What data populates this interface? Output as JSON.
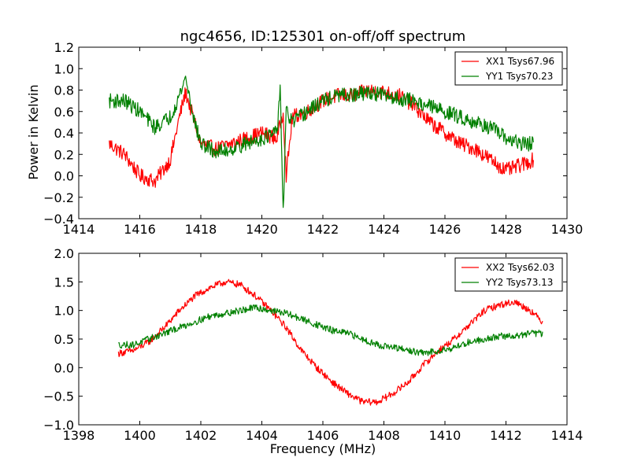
{
  "chart_data": [
    {
      "type": "line",
      "title": "ngc4656, ID:125301 on-off/off spectrum",
      "xlabel": "",
      "ylabel": "Power in Kelvin",
      "xlim": [
        1414,
        1430
      ],
      "ylim": [
        -0.4,
        1.2
      ],
      "xticks": [
        1414,
        1416,
        1418,
        1420,
        1422,
        1424,
        1426,
        1428,
        1430
      ],
      "yticks": [
        -0.4,
        -0.2,
        0.0,
        0.2,
        0.4,
        0.6,
        0.8,
        1.0,
        1.2
      ],
      "xtick_labels": [
        "1414",
        "1416",
        "1418",
        "1420",
        "1422",
        "1424",
        "1426",
        "1428",
        "1430"
      ],
      "ytick_labels": [
        "−0.4",
        "−0.2",
        "0.0",
        "0.2",
        "0.4",
        "0.6",
        "0.8",
        "1.0",
        "1.2"
      ],
      "legend_position": "top-right",
      "grid": false,
      "series": [
        {
          "name": "XX1 Tsys67.96",
          "color": "#ff0000",
          "x": [
            1415.0,
            1415.5,
            1416.0,
            1416.5,
            1417.0,
            1417.3,
            1417.5,
            1417.8,
            1418.0,
            1418.5,
            1419.0,
            1419.5,
            1420.0,
            1420.5,
            1420.7,
            1420.8,
            1421.0,
            1421.5,
            1422.0,
            1422.5,
            1423.0,
            1423.5,
            1424.0,
            1424.5,
            1425.0,
            1425.5,
            1426.0,
            1426.5,
            1427.0,
            1427.5,
            1428.0,
            1428.5,
            1428.9
          ],
          "y": [
            0.3,
            0.2,
            0.0,
            -0.05,
            0.15,
            0.55,
            0.78,
            0.5,
            0.3,
            0.25,
            0.3,
            0.35,
            0.4,
            0.35,
            0.6,
            0.0,
            0.55,
            0.6,
            0.7,
            0.75,
            0.75,
            0.8,
            0.78,
            0.75,
            0.65,
            0.5,
            0.4,
            0.3,
            0.25,
            0.15,
            0.05,
            0.1,
            0.15
          ],
          "noise": 0.07
        },
        {
          "name": "YY1 Tsys70.23",
          "color": "#008000",
          "x": [
            1415.0,
            1415.5,
            1416.0,
            1416.5,
            1417.0,
            1417.3,
            1417.5,
            1417.8,
            1418.0,
            1418.5,
            1419.0,
            1419.5,
            1420.0,
            1420.5,
            1420.6,
            1420.7,
            1420.8,
            1421.0,
            1421.5,
            1422.0,
            1422.5,
            1423.0,
            1423.5,
            1424.0,
            1424.5,
            1425.0,
            1425.5,
            1426.0,
            1426.5,
            1427.0,
            1427.5,
            1428.0,
            1428.5,
            1428.9
          ],
          "y": [
            0.7,
            0.7,
            0.6,
            0.45,
            0.55,
            0.75,
            0.92,
            0.5,
            0.3,
            0.22,
            0.25,
            0.3,
            0.35,
            0.4,
            0.85,
            -0.35,
            0.6,
            0.5,
            0.6,
            0.7,
            0.75,
            0.75,
            0.78,
            0.75,
            0.72,
            0.7,
            0.65,
            0.6,
            0.55,
            0.5,
            0.45,
            0.35,
            0.3,
            0.3
          ],
          "noise": 0.07
        }
      ]
    },
    {
      "type": "line",
      "title": "",
      "xlabel": "Frequency (MHz)",
      "ylabel": "",
      "xlim": [
        1398,
        1414
      ],
      "ylim": [
        -1.0,
        2.0
      ],
      "xticks": [
        1398,
        1400,
        1402,
        1404,
        1406,
        1408,
        1410,
        1412,
        1414
      ],
      "yticks": [
        -1.0,
        -0.5,
        0.0,
        0.5,
        1.0,
        1.5,
        2.0
      ],
      "xtick_labels": [
        "1398",
        "1400",
        "1402",
        "1404",
        "1406",
        "1408",
        "1410",
        "1412",
        "1414"
      ],
      "ytick_labels": [
        "−1.0",
        "−0.5",
        "0.0",
        "0.5",
        "1.0",
        "1.5",
        "2.0"
      ],
      "legend_position": "top-right",
      "grid": false,
      "series": [
        {
          "name": "XX2 Tsys62.03",
          "color": "#ff0000",
          "x": [
            1399.3,
            1399.8,
            1400.3,
            1400.8,
            1401.3,
            1401.8,
            1402.3,
            1402.8,
            1403.3,
            1403.8,
            1404.3,
            1404.8,
            1405.3,
            1405.8,
            1406.3,
            1406.8,
            1407.3,
            1407.8,
            1408.3,
            1408.8,
            1409.3,
            1409.8,
            1410.3,
            1410.8,
            1411.3,
            1411.8,
            1412.3,
            1412.8,
            1413.2
          ],
          "y": [
            0.25,
            0.3,
            0.45,
            0.7,
            1.0,
            1.25,
            1.4,
            1.5,
            1.45,
            1.25,
            1.0,
            0.7,
            0.3,
            0.0,
            -0.25,
            -0.45,
            -0.6,
            -0.6,
            -0.45,
            -0.25,
            0.05,
            0.3,
            0.5,
            0.75,
            1.0,
            1.1,
            1.15,
            1.0,
            0.8
          ],
          "noise": 0.06
        },
        {
          "name": "YY2 Tsys73.13",
          "color": "#008000",
          "x": [
            1399.3,
            1399.8,
            1400.3,
            1400.8,
            1401.3,
            1401.8,
            1402.3,
            1402.8,
            1403.3,
            1403.8,
            1404.3,
            1404.8,
            1405.3,
            1405.8,
            1406.3,
            1406.8,
            1407.3,
            1407.8,
            1408.3,
            1408.8,
            1409.3,
            1409.8,
            1410.3,
            1410.8,
            1411.3,
            1411.8,
            1412.3,
            1412.8,
            1413.2
          ],
          "y": [
            0.4,
            0.4,
            0.5,
            0.6,
            0.7,
            0.8,
            0.9,
            0.95,
            1.0,
            1.05,
            1.0,
            0.95,
            0.85,
            0.75,
            0.65,
            0.6,
            0.5,
            0.4,
            0.35,
            0.3,
            0.25,
            0.3,
            0.35,
            0.45,
            0.5,
            0.55,
            0.55,
            0.6,
            0.6
          ],
          "noise": 0.06
        }
      ]
    }
  ]
}
